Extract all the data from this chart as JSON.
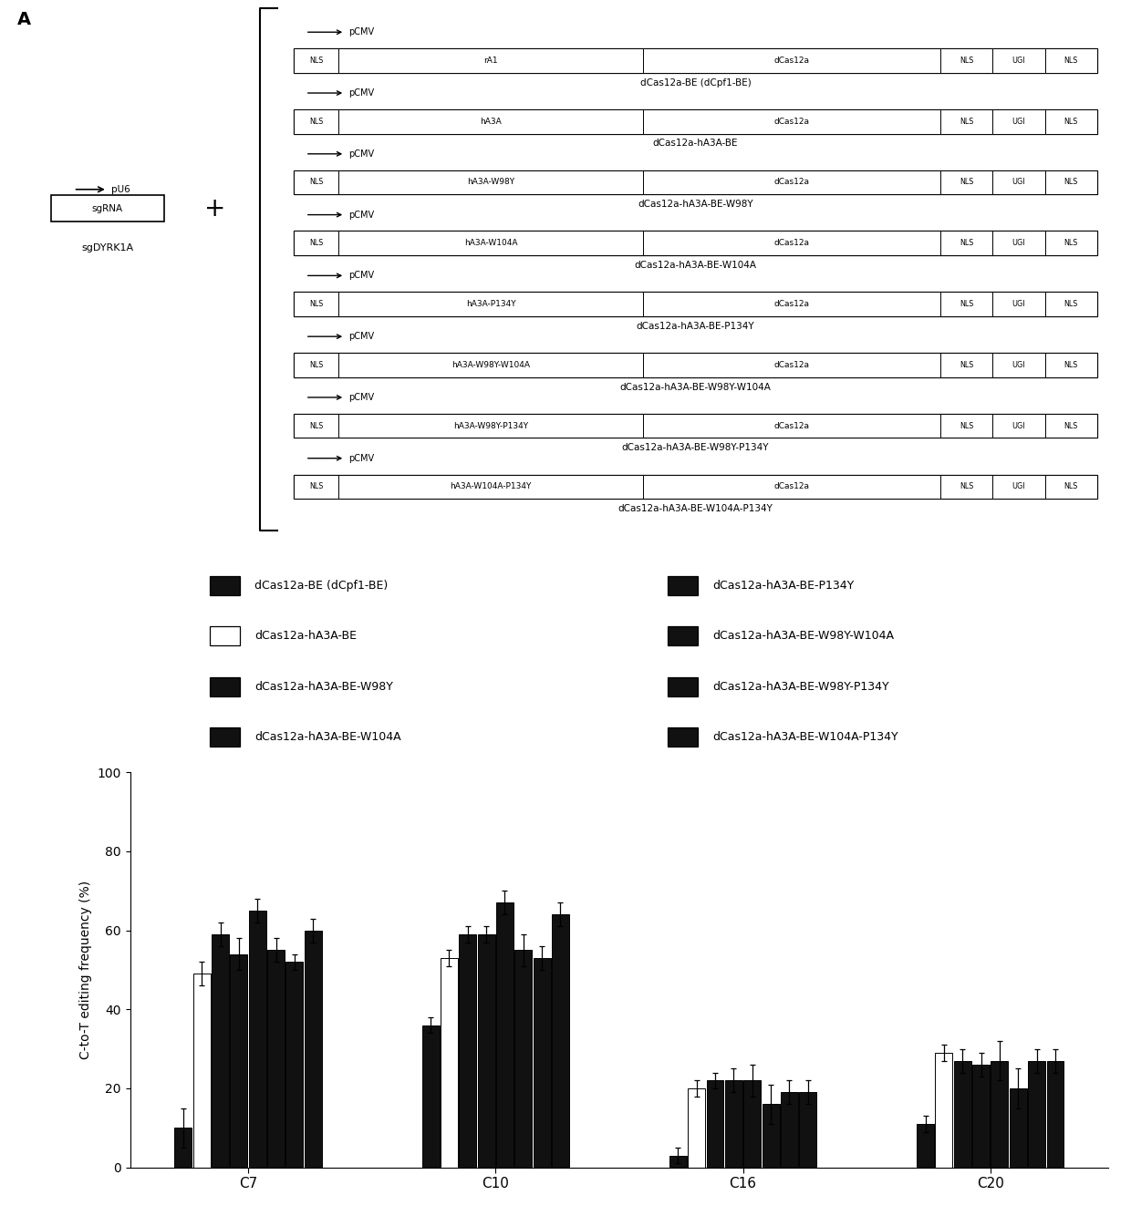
{
  "panel_A": {
    "constructs": [
      {
        "label": "dCas12a-BE (dCpf1-BE)",
        "domain2": "rA1"
      },
      {
        "label": "dCas12a-hA3A-BE",
        "domain2": "hA3A"
      },
      {
        "label": "dCas12a-hA3A-BE-W98Y",
        "domain2": "hA3A-W98Y"
      },
      {
        "label": "dCas12a-hA3A-BE-W104A",
        "domain2": "hA3A-W104A"
      },
      {
        "label": "dCas12a-hA3A-BE-P134Y",
        "domain2": "hA3A-P134Y"
      },
      {
        "label": "dCas12a-hA3A-BE-W98Y-W104A",
        "domain2": "hA3A-W98Y-W104A"
      },
      {
        "label": "dCas12a-hA3A-BE-W98Y-P134Y",
        "domain2": "hA3A-W98Y-P134Y"
      },
      {
        "label": "dCas12a-hA3A-BE-W104A-P134Y",
        "domain2": "hA3A-W104A-P134Y"
      }
    ]
  },
  "panel_B": {
    "groups": [
      "C7",
      "C10",
      "C16",
      "C20"
    ],
    "series_names": [
      "dCas12a-BE (dCpf1-BE)",
      "dCas12a-hA3A-BE",
      "dCas12a-hA3A-BE-W98Y",
      "dCas12a-hA3A-BE-W104A",
      "dCas12a-hA3A-BE-P134Y",
      "dCas12a-hA3A-BE-W98Y-W104A",
      "dCas12a-hA3A-BE-W98Y-P134Y",
      "dCas12a-hA3A-BE-W104A-P134Y"
    ],
    "colors": [
      "#111111",
      "#ffffff",
      "#111111",
      "#111111",
      "#111111",
      "#111111",
      "#111111",
      "#111111"
    ],
    "values": {
      "C7": [
        10,
        49,
        59,
        54,
        65,
        55,
        52,
        60
      ],
      "C10": [
        36,
        53,
        59,
        59,
        67,
        55,
        53,
        64
      ],
      "C16": [
        3,
        20,
        22,
        22,
        22,
        16,
        19,
        19
      ],
      "C20": [
        11,
        29,
        27,
        26,
        27,
        20,
        27,
        27
      ]
    },
    "errors": {
      "C7": [
        5,
        3,
        3,
        4,
        3,
        3,
        2,
        3
      ],
      "C10": [
        2,
        2,
        2,
        2,
        3,
        4,
        3,
        3
      ],
      "C16": [
        2,
        2,
        2,
        3,
        4,
        5,
        3,
        3
      ],
      "C20": [
        2,
        2,
        3,
        3,
        5,
        5,
        3,
        3
      ]
    },
    "ylabel": "C-to-T editing frequency (%)",
    "ylim": [
      0,
      100
    ],
    "yticks": [
      0,
      20,
      40,
      60,
      80,
      100
    ]
  }
}
